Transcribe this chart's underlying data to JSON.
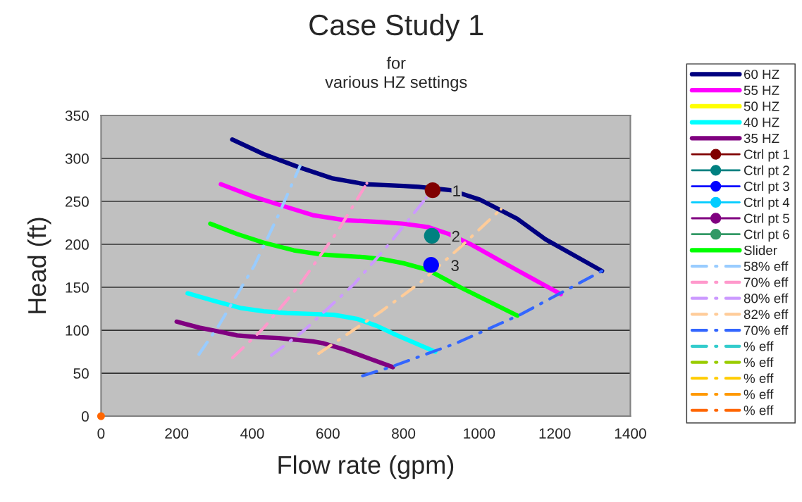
{
  "chart_data": {
    "type": "line",
    "title": "Case Study 1",
    "subtitle": "for\nvarious HZ settings",
    "xlabel": "Flow rate (gpm)",
    "ylabel": "Head (ft)",
    "xlim": [
      0,
      1400
    ],
    "ylim": [
      0,
      350
    ],
    "xticks": [
      0,
      200,
      400,
      600,
      800,
      1000,
      1200,
      1400
    ],
    "yticks": [
      0,
      50,
      100,
      150,
      200,
      250,
      300,
      350
    ],
    "grid": "y",
    "legend": "right",
    "series": [
      {
        "name": "60 HZ",
        "color": "#000080",
        "x": [
          347,
          430,
          522,
          610,
          698,
          800,
          840,
          925,
          1002,
          1100,
          1175,
          1325
        ],
        "values": [
          322,
          305,
          290,
          277,
          270,
          268,
          267,
          263,
          252,
          230,
          206,
          169
        ]
      },
      {
        "name": "55 HZ",
        "color": "#ff00ff",
        "x": [
          317,
          400,
          479,
          560,
          647,
          741,
          800,
          866,
          920,
          978,
          1100,
          1216
        ],
        "values": [
          270,
          256,
          245,
          234,
          228,
          226,
          224,
          220,
          212,
          200,
          170,
          142
        ]
      },
      {
        "name": "50 HZ",
        "color": "#ffff00"
      },
      {
        "name": "40 HZ",
        "color": "#00ffff",
        "x": [
          229,
          300,
          368,
          430,
          492,
          554,
          616,
          679,
          730,
          778,
          884
        ],
        "values": [
          143,
          134,
          126,
          122,
          120,
          119,
          118,
          113,
          105,
          95,
          75
        ]
      },
      {
        "name": "35 HZ",
        "color": "#800080",
        "x": [
          200,
          260,
          306,
          360,
          418,
          470,
          511,
          560,
          586,
          647,
          710,
          772
        ],
        "values": [
          110,
          103,
          99,
          94,
          92,
          91,
          89,
          87,
          85,
          77,
          67,
          57
        ]
      },
      {
        "name": "Ctrl pt 1",
        "type": "scatter",
        "marker": "circle",
        "color": "#800000",
        "x": [
          877
        ],
        "values": [
          263
        ]
      },
      {
        "name": "Ctrl pt 2",
        "type": "scatter",
        "marker": "circle",
        "color": "#008080",
        "x": [
          875
        ],
        "values": [
          210
        ]
      },
      {
        "name": "Ctrl pt 3",
        "type": "scatter",
        "marker": "circle",
        "color": "#0000ff",
        "x": [
          873
        ],
        "values": [
          176
        ]
      },
      {
        "name": "Ctrl pt 4",
        "type": "scatter",
        "marker": "circle",
        "color": "#00ccff"
      },
      {
        "name": "Ctrl pt 5",
        "type": "scatter",
        "marker": "circle",
        "color": "#800080"
      },
      {
        "name": "Ctrl pt 6",
        "type": "scatter",
        "marker": "circle",
        "color": "#339966"
      },
      {
        "name": "Slider",
        "color": "#00ff00",
        "x": [
          289,
          360,
          429,
          510,
          586,
          698,
          741,
          800,
          866,
          950,
          1101
        ],
        "values": [
          224,
          212,
          202,
          193,
          188,
          185,
          183,
          178,
          170,
          150,
          117
        ]
      },
      {
        "name": "58% eff",
        "line_style": "dashdot",
        "color": "#99ccff",
        "x": [
          259,
          312,
          405,
          467,
          526
        ],
        "values": [
          72,
          106,
          175,
          232,
          291
        ]
      },
      {
        "name": "70% eff",
        "line_style": "dashdot",
        "color": "#ff99cc",
        "x": [
          348,
          429,
          522,
          627,
          703
        ],
        "values": [
          68,
          102,
          151,
          216,
          271
        ]
      },
      {
        "name": "80% eff",
        "line_style": "dashdot",
        "color": "#cc99ff",
        "x": [
          451,
          535,
          670,
          765,
          860
        ],
        "values": [
          71,
          99,
          154,
          202,
          254
        ]
      },
      {
        "name": "82% eff",
        "line_style": "dashdot",
        "color": "#ffcc99",
        "x": [
          576,
          741,
          843,
          951,
          1058
        ],
        "values": [
          73,
          122,
          155,
          197,
          241
        ]
      },
      {
        "name": "70% eff",
        "line_style": "dashdot",
        "color": "#3366ff",
        "x": [
          692,
          765,
          940,
          1108,
          1325
        ],
        "values": [
          47,
          57,
          85,
          118,
          169
        ]
      },
      {
        "name": "% eff",
        "line_style": "dashdot",
        "color": "#33cccc"
      },
      {
        "name": "% eff",
        "line_style": "dashdot",
        "color": "#99cc00"
      },
      {
        "name": "% eff",
        "line_style": "dashdot",
        "color": "#ffcc00"
      },
      {
        "name": "% eff",
        "line_style": "dashdot",
        "color": "#ff9900"
      },
      {
        "name": "% eff",
        "line_style": "dashdot",
        "color": "#ff6600",
        "marker": "circle",
        "x": [
          0
        ],
        "values": [
          0
        ]
      }
    ],
    "annotations": [
      {
        "text": "1",
        "x": 877,
        "y": 263
      },
      {
        "text": "2",
        "x": 875,
        "y": 210
      },
      {
        "text": "3",
        "x": 873,
        "y": 176
      }
    ]
  }
}
